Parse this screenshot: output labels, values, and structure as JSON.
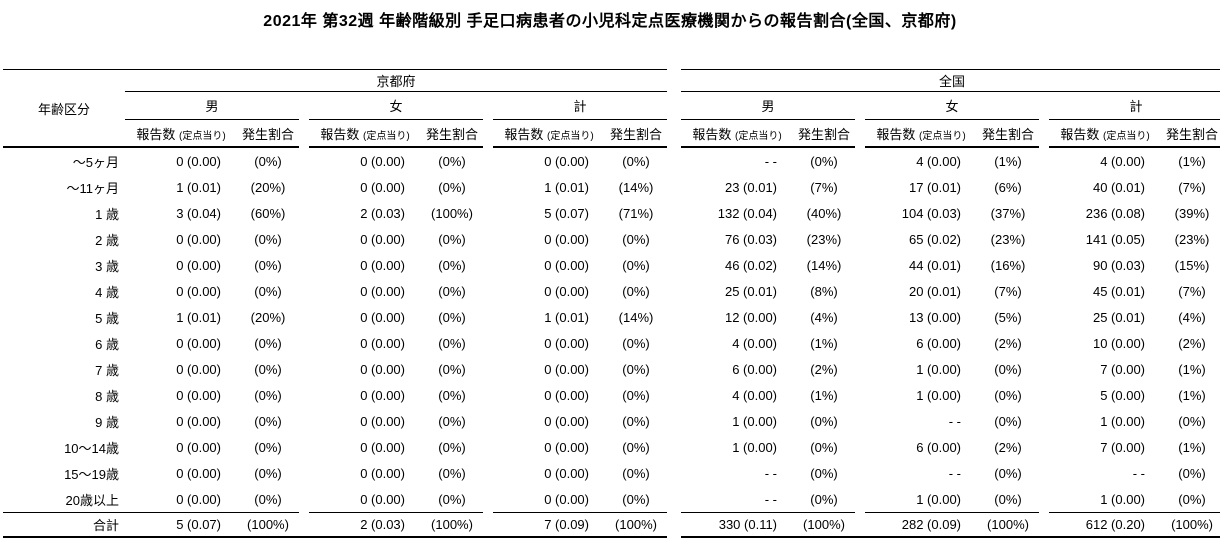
{
  "title": "2021年 第32週 年齢階級別 手足口病患者の小児科定点医療機関からの報告割合(全国、京都府)",
  "chart_data": {
    "type": "table",
    "title": "2021年 第32週 年齢階級別 手足口病患者の小児科定点医療機関からの報告割合(全国、京都府)",
    "age_column_header": "年齢区分",
    "region_groups": [
      "京都府",
      "全国"
    ],
    "sex_groups": [
      "男",
      "女",
      "計"
    ],
    "measure_headers": {
      "count": "報告数",
      "count_sub": "(定点当り)",
      "rate": "発生割合"
    },
    "column_keys": [
      "kyoto_male_count",
      "kyoto_male_rate",
      "kyoto_female_count",
      "kyoto_female_rate",
      "kyoto_total_count",
      "kyoto_total_rate",
      "national_male_count",
      "national_male_rate",
      "national_female_count",
      "national_female_rate",
      "national_total_count",
      "national_total_rate"
    ],
    "rows": [
      {
        "age": "～5ヶ月",
        "cells": [
          "0 (0.00)",
          "(0%)",
          "0 (0.00)",
          "(0%)",
          "0 (0.00)",
          "(0%)",
          "- -",
          "(0%)",
          "4 (0.00)",
          "(1%)",
          "4 (0.00)",
          "(1%)"
        ]
      },
      {
        "age": "～11ヶ月",
        "cells": [
          "1 (0.01)",
          "(20%)",
          "0 (0.00)",
          "(0%)",
          "1 (0.01)",
          "(14%)",
          "23 (0.01)",
          "(7%)",
          "17 (0.01)",
          "(6%)",
          "40 (0.01)",
          "(7%)"
        ]
      },
      {
        "age": "1 歳",
        "cells": [
          "3 (0.04)",
          "(60%)",
          "2 (0.03)",
          "(100%)",
          "5 (0.07)",
          "(71%)",
          "132 (0.04)",
          "(40%)",
          "104 (0.03)",
          "(37%)",
          "236 (0.08)",
          "(39%)"
        ]
      },
      {
        "age": "2 歳",
        "cells": [
          "0 (0.00)",
          "(0%)",
          "0 (0.00)",
          "(0%)",
          "0 (0.00)",
          "(0%)",
          "76 (0.03)",
          "(23%)",
          "65 (0.02)",
          "(23%)",
          "141 (0.05)",
          "(23%)"
        ]
      },
      {
        "age": "3 歳",
        "cells": [
          "0 (0.00)",
          "(0%)",
          "0 (0.00)",
          "(0%)",
          "0 (0.00)",
          "(0%)",
          "46 (0.02)",
          "(14%)",
          "44 (0.01)",
          "(16%)",
          "90 (0.03)",
          "(15%)"
        ]
      },
      {
        "age": "4 歳",
        "cells": [
          "0 (0.00)",
          "(0%)",
          "0 (0.00)",
          "(0%)",
          "0 (0.00)",
          "(0%)",
          "25 (0.01)",
          "(8%)",
          "20 (0.01)",
          "(7%)",
          "45 (0.01)",
          "(7%)"
        ]
      },
      {
        "age": "5 歳",
        "cells": [
          "1 (0.01)",
          "(20%)",
          "0 (0.00)",
          "(0%)",
          "1 (0.01)",
          "(14%)",
          "12 (0.00)",
          "(4%)",
          "13 (0.00)",
          "(5%)",
          "25 (0.01)",
          "(4%)"
        ]
      },
      {
        "age": "6 歳",
        "cells": [
          "0 (0.00)",
          "(0%)",
          "0 (0.00)",
          "(0%)",
          "0 (0.00)",
          "(0%)",
          "4 (0.00)",
          "(1%)",
          "6 (0.00)",
          "(2%)",
          "10 (0.00)",
          "(2%)"
        ]
      },
      {
        "age": "7 歳",
        "cells": [
          "0 (0.00)",
          "(0%)",
          "0 (0.00)",
          "(0%)",
          "0 (0.00)",
          "(0%)",
          "6 (0.00)",
          "(2%)",
          "1 (0.00)",
          "(0%)",
          "7 (0.00)",
          "(1%)"
        ]
      },
      {
        "age": "8 歳",
        "cells": [
          "0 (0.00)",
          "(0%)",
          "0 (0.00)",
          "(0%)",
          "0 (0.00)",
          "(0%)",
          "4 (0.00)",
          "(1%)",
          "1 (0.00)",
          "(0%)",
          "5 (0.00)",
          "(1%)"
        ]
      },
      {
        "age": "9 歳",
        "cells": [
          "0 (0.00)",
          "(0%)",
          "0 (0.00)",
          "(0%)",
          "0 (0.00)",
          "(0%)",
          "1 (0.00)",
          "(0%)",
          "- -",
          "(0%)",
          "1 (0.00)",
          "(0%)"
        ]
      },
      {
        "age": "10～14歳",
        "cells": [
          "0 (0.00)",
          "(0%)",
          "0 (0.00)",
          "(0%)",
          "0 (0.00)",
          "(0%)",
          "1 (0.00)",
          "(0%)",
          "6 (0.00)",
          "(2%)",
          "7 (0.00)",
          "(1%)"
        ]
      },
      {
        "age": "15～19歳",
        "cells": [
          "0 (0.00)",
          "(0%)",
          "0 (0.00)",
          "(0%)",
          "0 (0.00)",
          "(0%)",
          "- -",
          "(0%)",
          "- -",
          "(0%)",
          "- -",
          "(0%)"
        ]
      },
      {
        "age": "20歳以上",
        "cells": [
          "0 (0.00)",
          "(0%)",
          "0 (0.00)",
          "(0%)",
          "0 (0.00)",
          "(0%)",
          "- -",
          "(0%)",
          "1 (0.00)",
          "(0%)",
          "1 (0.00)",
          "(0%)"
        ]
      }
    ],
    "total_row": {
      "age": "合計",
      "cells": [
        "5 (0.07)",
        "(100%)",
        "2 (0.03)",
        "(100%)",
        "7 (0.09)",
        "(100%)",
        "330 (0.11)",
        "(100%)",
        "282 (0.09)",
        "(100%)",
        "612 (0.20)",
        "(100%)"
      ]
    }
  }
}
